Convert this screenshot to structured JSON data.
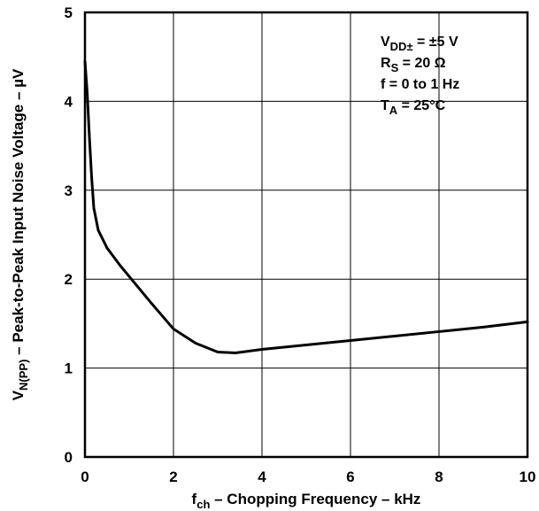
{
  "chart_data": {
    "type": "line",
    "x_axis": {
      "label_main": "f",
      "label_sub": "ch",
      "label_rest": " – Chopping Frequency – kHz",
      "ticks": [
        0,
        2,
        4,
        6,
        8,
        10
      ],
      "tick_labels": [
        "0",
        "2",
        "4",
        "6",
        "8",
        "10"
      ],
      "range": [
        0,
        10
      ]
    },
    "y_axis": {
      "label_main": "V",
      "label_sub": "N(PP)",
      "label_rest": " – Peak-to-Peak Input Noise Voltage – µV",
      "ticks": [
        0,
        1,
        2,
        3,
        4,
        5
      ],
      "tick_labels": [
        "0",
        "1",
        "2",
        "3",
        "4",
        "5"
      ],
      "range": [
        0,
        5
      ]
    },
    "grid": true,
    "legend": null,
    "series": [
      {
        "x": [
          0.0,
          0.05,
          0.1,
          0.15,
          0.2,
          0.3,
          0.5,
          0.8,
          1.0,
          1.5,
          2.0,
          2.5,
          3.0,
          3.4,
          4.0,
          5.0,
          6.0,
          7.0,
          8.0,
          9.0,
          10.0
        ],
        "y": [
          4.45,
          4.1,
          3.6,
          3.15,
          2.8,
          2.55,
          2.35,
          2.15,
          2.03,
          1.73,
          1.44,
          1.28,
          1.18,
          1.17,
          1.21,
          1.26,
          1.31,
          1.36,
          1.41,
          1.46,
          1.52
        ]
      }
    ],
    "conditions": [
      {
        "main": "V",
        "sub": "DD±",
        "rest": " = ±5 V"
      },
      {
        "main": "R",
        "sub": "S",
        "rest": " = 20 Ω"
      },
      {
        "main": "f = 0 to 1 Hz",
        "sub": "",
        "rest": ""
      },
      {
        "main": "T",
        "sub": "A",
        "rest": " = 25°C"
      }
    ]
  }
}
